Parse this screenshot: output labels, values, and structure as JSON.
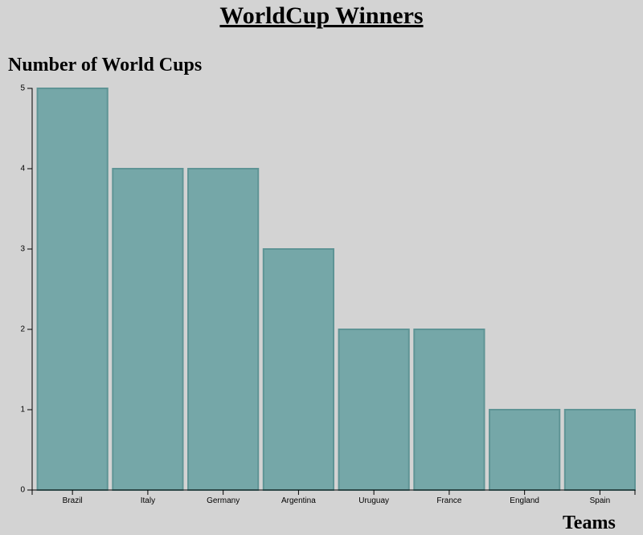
{
  "chart_data": {
    "type": "bar",
    "title": "WorldCup Winners",
    "ylabel": "Number of World Cups",
    "xlabel": "Teams",
    "categories": [
      "Brazil",
      "Italy",
      "Germany",
      "Argentina",
      "Uruguay",
      "France",
      "England",
      "Spain"
    ],
    "values": [
      5,
      4,
      4,
      3,
      2,
      2,
      1,
      1
    ],
    "ylim": [
      0,
      5
    ],
    "yticks": [
      "0",
      "1",
      "2",
      "3",
      "4",
      "5"
    ],
    "grid": false,
    "bar_fill": "#75a7a8",
    "bar_stroke": "#5e9495",
    "background": "#d3d3d3"
  }
}
